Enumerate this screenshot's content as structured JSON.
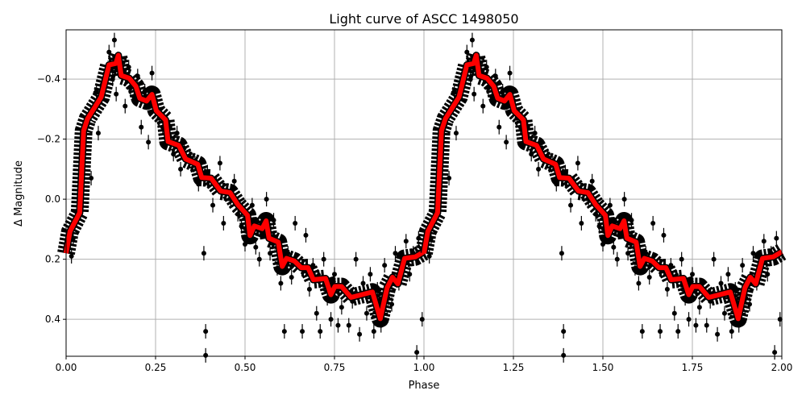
{
  "chart_data": {
    "type": "scatter",
    "title": "Light curve of ASCC 1498050",
    "xlabel": "Phase",
    "ylabel": "Δ Magnitude",
    "xlim": [
      0,
      2
    ],
    "ylim": [
      0.523,
      -0.564
    ],
    "y_inverted": true,
    "grid": true,
    "phase_repeat": 2,
    "xticks": [
      0,
      0.25,
      0.5,
      0.75,
      1.0,
      1.25,
      1.5,
      1.75,
      2.0
    ],
    "xtick_labels": [
      "0.00",
      "0.25",
      "0.50",
      "0.75",
      "1.00",
      "1.25",
      "1.50",
      "1.75",
      "2.00"
    ],
    "yticks": [
      -0.4,
      -0.2,
      0.0,
      0.2,
      0.4
    ],
    "ytick_labels": [
      "−0.4",
      "−0.2",
      "0.0",
      "0.2",
      "0.4"
    ],
    "colors": {
      "points": "#000000",
      "model": "#ff0000",
      "grid": "#b0b0b0"
    },
    "model": [
      [
        0.0,
        0.18
      ],
      [
        0.011,
        0.107
      ],
      [
        0.038,
        0.045
      ],
      [
        0.049,
        -0.228
      ],
      [
        0.06,
        -0.268
      ],
      [
        0.098,
        -0.34
      ],
      [
        0.12,
        -0.447
      ],
      [
        0.139,
        -0.452
      ],
      [
        0.146,
        -0.479
      ],
      [
        0.154,
        -0.412
      ],
      [
        0.176,
        -0.403
      ],
      [
        0.195,
        -0.376
      ],
      [
        0.206,
        -0.336
      ],
      [
        0.225,
        -0.327
      ],
      [
        0.24,
        -0.349
      ],
      [
        0.252,
        -0.295
      ],
      [
        0.278,
        -0.264
      ],
      [
        0.285,
        -0.192
      ],
      [
        0.315,
        -0.179
      ],
      [
        0.334,
        -0.134
      ],
      [
        0.368,
        -0.116
      ],
      [
        0.379,
        -0.072
      ],
      [
        0.405,
        -0.07
      ],
      [
        0.432,
        -0.027
      ],
      [
        0.458,
        -0.022
      ],
      [
        0.48,
        0.018
      ],
      [
        0.507,
        0.054
      ],
      [
        0.514,
        0.121
      ],
      [
        0.526,
        0.089
      ],
      [
        0.548,
        0.098
      ],
      [
        0.559,
        0.072
      ],
      [
        0.567,
        0.13
      ],
      [
        0.593,
        0.143
      ],
      [
        0.604,
        0.224
      ],
      [
        0.616,
        0.197
      ],
      [
        0.638,
        0.206
      ],
      [
        0.657,
        0.228
      ],
      [
        0.676,
        0.228
      ],
      [
        0.691,
        0.268
      ],
      [
        0.725,
        0.264
      ],
      [
        0.74,
        0.318
      ],
      [
        0.751,
        0.291
      ],
      [
        0.77,
        0.291
      ],
      [
        0.796,
        0.327
      ],
      [
        0.856,
        0.309
      ],
      [
        0.878,
        0.398
      ],
      [
        0.897,
        0.295
      ],
      [
        0.912,
        0.26
      ],
      [
        0.927,
        0.282
      ],
      [
        0.946,
        0.197
      ],
      [
        0.976,
        0.192
      ],
      [
        1.0,
        0.175
      ]
    ],
    "points": [
      [
        0.015,
        0.19
      ],
      [
        0.02,
        0.13
      ],
      [
        0.03,
        0.06
      ],
      [
        0.04,
        -0.02
      ],
      [
        0.045,
        -0.1
      ],
      [
        0.05,
        -0.18
      ],
      [
        0.06,
        -0.25
      ],
      [
        0.07,
        -0.07
      ],
      [
        0.075,
        -0.3
      ],
      [
        0.085,
        -0.36
      ],
      [
        0.09,
        -0.22
      ],
      [
        0.1,
        -0.38
      ],
      [
        0.11,
        -0.42
      ],
      [
        0.12,
        -0.49
      ],
      [
        0.13,
        -0.4
      ],
      [
        0.135,
        -0.53
      ],
      [
        0.14,
        -0.35
      ],
      [
        0.15,
        -0.45
      ],
      [
        0.16,
        -0.43
      ],
      [
        0.165,
        -0.31
      ],
      [
        0.175,
        -0.44
      ],
      [
        0.18,
        -0.37
      ],
      [
        0.19,
        -0.34
      ],
      [
        0.2,
        -0.41
      ],
      [
        0.21,
        -0.24
      ],
      [
        0.22,
        -0.36
      ],
      [
        0.23,
        -0.19
      ],
      [
        0.24,
        -0.42
      ],
      [
        0.25,
        -0.3
      ],
      [
        0.26,
        -0.27
      ],
      [
        0.27,
        -0.24
      ],
      [
        0.28,
        -0.2
      ],
      [
        0.29,
        -0.24
      ],
      [
        0.3,
        -0.15
      ],
      [
        0.31,
        -0.22
      ],
      [
        0.32,
        -0.1
      ],
      [
        0.33,
        -0.17
      ],
      [
        0.345,
        -0.14
      ],
      [
        0.36,
        -0.12
      ],
      [
        0.37,
        -0.05
      ],
      [
        0.385,
        0.18
      ],
      [
        0.39,
        0.44
      ],
      [
        0.39,
        0.52
      ],
      [
        0.395,
        -0.09
      ],
      [
        0.41,
        0.02
      ],
      [
        0.42,
        -0.05
      ],
      [
        0.43,
        -0.12
      ],
      [
        0.44,
        0.08
      ],
      [
        0.46,
        0.0
      ],
      [
        0.47,
        -0.06
      ],
      [
        0.48,
        0.05
      ],
      [
        0.49,
        0.09
      ],
      [
        0.5,
        0.15
      ],
      [
        0.51,
        0.1
      ],
      [
        0.52,
        0.02
      ],
      [
        0.53,
        0.16
      ],
      [
        0.54,
        0.2
      ],
      [
        0.56,
        0.0
      ],
      [
        0.57,
        0.18
      ],
      [
        0.58,
        0.07
      ],
      [
        0.59,
        0.23
      ],
      [
        0.6,
        0.28
      ],
      [
        0.61,
        0.44
      ],
      [
        0.62,
        0.18
      ],
      [
        0.63,
        0.26
      ],
      [
        0.64,
        0.08
      ],
      [
        0.66,
        0.44
      ],
      [
        0.67,
        0.12
      ],
      [
        0.68,
        0.3
      ],
      [
        0.69,
        0.22
      ],
      [
        0.7,
        0.38
      ],
      [
        0.71,
        0.44
      ],
      [
        0.72,
        0.2
      ],
      [
        0.73,
        0.33
      ],
      [
        0.74,
        0.4
      ],
      [
        0.75,
        0.25
      ],
      [
        0.76,
        0.42
      ],
      [
        0.77,
        0.36
      ],
      [
        0.78,
        0.3
      ],
      [
        0.79,
        0.42
      ],
      [
        0.8,
        0.34
      ],
      [
        0.81,
        0.2
      ],
      [
        0.82,
        0.45
      ],
      [
        0.83,
        0.28
      ],
      [
        0.84,
        0.38
      ],
      [
        0.85,
        0.25
      ],
      [
        0.86,
        0.44
      ],
      [
        0.87,
        0.3
      ],
      [
        0.88,
        0.42
      ],
      [
        0.89,
        0.22
      ],
      [
        0.9,
        0.33
      ],
      [
        0.91,
        0.35
      ],
      [
        0.92,
        0.18
      ],
      [
        0.93,
        0.28
      ],
      [
        0.94,
        0.2
      ],
      [
        0.95,
        0.14
      ],
      [
        0.96,
        0.25
      ],
      [
        0.97,
        0.18
      ],
      [
        0.98,
        0.51
      ],
      [
        0.985,
        0.13
      ],
      [
        0.995,
        0.4
      ]
    ]
  }
}
